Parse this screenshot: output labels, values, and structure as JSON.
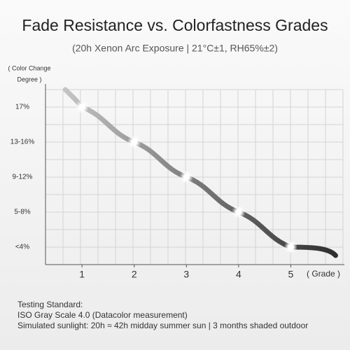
{
  "chart_data": {
    "type": "line",
    "title": "Fade Resistance vs. Colorfastness Grades",
    "subtitle": "(20h Xenon Arc Exposure | 21°C±1, RH65%±2)",
    "y_label": [
      "( Color Change",
      "Degree )"
    ],
    "x_label": "( Grade )",
    "x": [
      1,
      2,
      3,
      4,
      5
    ],
    "xlim": [
      0.3,
      6
    ],
    "xticks": [
      1,
      2,
      3,
      4,
      5
    ],
    "y_categories": [
      "<4%",
      "5-8%",
      "9-12%",
      "13-16%",
      "17%"
    ],
    "series": [
      {
        "color": "#555555",
        "values": [
          "17%",
          "13-16%",
          "9-12%",
          "5-8%",
          "<4%"
        ]
      }
    ],
    "grid": true,
    "notes": [
      "Testing Standard:",
      "ISO Gray Scale 4.0 (Datacolor measurement)",
      "Simulated sunlight: 20h ≈ 42h midday summer sun | 3 months shaded outdoor"
    ]
  }
}
